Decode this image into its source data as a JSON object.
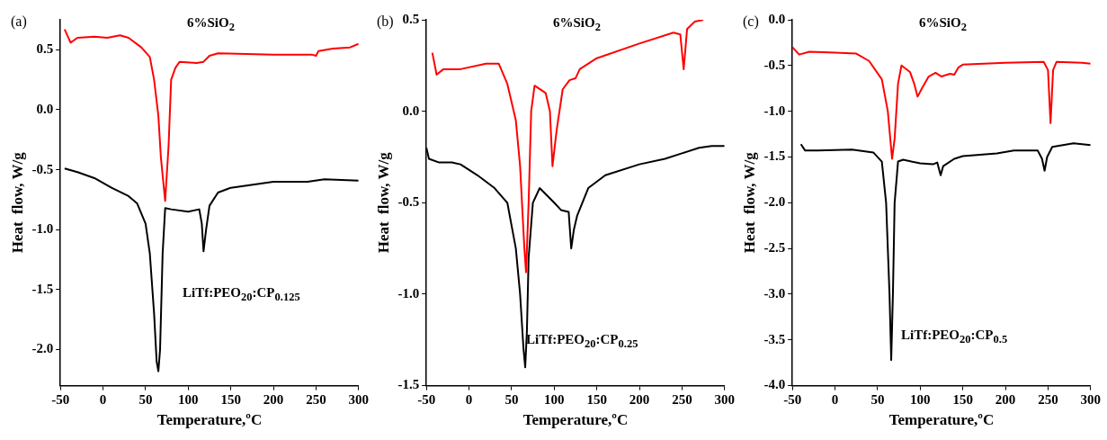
{
  "chart_data": [
    {
      "type": "line",
      "xlabel": "Temperature,ºC",
      "ylabel": "Heat  flow, W/g",
      "xlim": [
        -50,
        300
      ],
      "xticks": [
        -50,
        0,
        50,
        100,
        150,
        200,
        250,
        300
      ],
      "ylim": [
        -2.3,
        0.75
      ],
      "yticks": [
        {
          "value": -2.0,
          "label": "-2.0"
        },
        {
          "value": -1.5,
          "label": "-1.5"
        },
        {
          "value": -1.0,
          "label": "-1.0"
        },
        {
          "value": -0.5,
          "label": "-0.5"
        },
        {
          "value": 0,
          "label": "0.0"
        },
        {
          "value": 0.5,
          "label": "0.5"
        }
      ],
      "grid": false,
      "legend": false,
      "marker": "none",
      "line_style": "solid",
      "annotations": [
        "(a)",
        "6%SiO$_{2}$",
        "LiTf:PEO$_{20}$:CP$_{0.125}$"
      ],
      "series": [
        {
          "color": "#ff0000",
          "x": [
            -45,
            -38,
            -30,
            -10,
            5,
            20,
            30,
            45,
            55,
            60,
            65,
            68,
            73,
            77,
            80,
            85,
            90,
            110,
            118,
            125,
            135,
            200,
            245,
            250,
            253,
            270,
            290,
            300
          ],
          "values": [
            0.67,
            0.56,
            0.6,
            0.61,
            0.6,
            0.62,
            0.6,
            0.52,
            0.44,
            0.25,
            -0.05,
            -0.4,
            -0.76,
            -0.3,
            0.25,
            0.35,
            0.4,
            0.39,
            0.4,
            0.45,
            0.47,
            0.46,
            0.46,
            0.45,
            0.49,
            0.51,
            0.52,
            0.55
          ]
        },
        {
          "color": "#000000",
          "x": [
            -45,
            -30,
            -10,
            10,
            30,
            40,
            50,
            55,
            60,
            63,
            65,
            67,
            70,
            73,
            80,
            100,
            113,
            116,
            118,
            121,
            125,
            135,
            150,
            200,
            240,
            260,
            300
          ],
          "values": [
            -0.49,
            -0.52,
            -0.57,
            -0.65,
            -0.72,
            -0.78,
            -0.95,
            -1.2,
            -1.7,
            -2.1,
            -2.18,
            -2.0,
            -1.2,
            -0.82,
            -0.83,
            -0.85,
            -0.83,
            -0.95,
            -1.18,
            -1.0,
            -0.8,
            -0.69,
            -0.65,
            -0.6,
            -0.6,
            -0.58,
            -0.59
          ]
        }
      ]
    },
    {
      "type": "line",
      "xlabel": "Temperature,ºC",
      "ylabel": "Heat  flow, W/g",
      "xlim": [
        -50,
        300
      ],
      "xticks": [
        -50,
        0,
        50,
        100,
        150,
        200,
        250,
        300
      ],
      "ylim": [
        -1.5,
        0.5
      ],
      "yticks": [
        {
          "value": -1.5,
          "label": "-1.5"
        },
        {
          "value": -1.0,
          "label": "-1.0"
        },
        {
          "value": -0.5,
          "label": "-0.5"
        },
        {
          "value": 0,
          "label": "0.0"
        },
        {
          "value": 0.5,
          "label": "0.5"
        }
      ],
      "grid": false,
      "legend": false,
      "marker": "none",
      "line_style": "solid",
      "annotations": [
        "(b)",
        "6%SiO$_{2}$",
        "LiTf:PEO$_{20}$:CP$_{0.25}$"
      ],
      "series": [
        {
          "color": "#ff0000",
          "x": [
            -43,
            -38,
            -30,
            -10,
            20,
            35,
            45,
            55,
            60,
            65,
            67,
            70,
            73,
            77,
            90,
            95,
            98,
            103,
            110,
            118,
            125,
            130,
            150,
            200,
            240,
            248,
            252,
            256,
            265,
            275
          ],
          "values": [
            0.32,
            0.2,
            0.23,
            0.23,
            0.26,
            0.26,
            0.15,
            -0.05,
            -0.3,
            -0.75,
            -0.88,
            -0.5,
            0.0,
            0.14,
            0.1,
            0.0,
            -0.3,
            -0.1,
            0.12,
            0.17,
            0.18,
            0.23,
            0.29,
            0.37,
            0.43,
            0.42,
            0.23,
            0.45,
            0.49,
            0.5
          ]
        },
        {
          "color": "#000000",
          "x": [
            -50,
            -47,
            -35,
            -20,
            -10,
            10,
            30,
            45,
            55,
            60,
            64,
            66,
            68,
            70,
            75,
            83,
            100,
            108,
            117,
            120,
            123,
            127,
            140,
            160,
            200,
            230,
            250,
            270,
            285,
            300
          ],
          "values": [
            -0.2,
            -0.26,
            -0.28,
            -0.28,
            -0.29,
            -0.35,
            -0.42,
            -0.5,
            -0.75,
            -1.0,
            -1.3,
            -1.4,
            -1.2,
            -0.8,
            -0.5,
            -0.42,
            -0.5,
            -0.54,
            -0.55,
            -0.75,
            -0.65,
            -0.57,
            -0.42,
            -0.35,
            -0.29,
            -0.26,
            -0.23,
            -0.2,
            -0.19,
            -0.19
          ]
        }
      ]
    },
    {
      "type": "line",
      "xlabel": "Temperature,ºC",
      "ylabel": "Heat  flow, W/g",
      "xlim": [
        -50,
        300
      ],
      "xticks": [
        -50,
        0,
        50,
        100,
        150,
        200,
        250,
        300
      ],
      "ylim": [
        -4.0,
        0.0
      ],
      "yticks": [
        {
          "value": -4.0,
          "label": "-4.0"
        },
        {
          "value": -3.5,
          "label": "-3.5"
        },
        {
          "value": -3.0,
          "label": "-3.0"
        },
        {
          "value": -2.5,
          "label": "-2.5"
        },
        {
          "value": -2.0,
          "label": "-2.0"
        },
        {
          "value": -1.5,
          "label": "-1.5"
        },
        {
          "value": -1.0,
          "label": "-1.0"
        },
        {
          "value": -0.5,
          "label": "-0.5"
        },
        {
          "value": 0,
          "label": "0.0"
        }
      ],
      "grid": false,
      "legend": false,
      "marker": "none",
      "line_style": "solid",
      "annotations": [
        "(c)",
        "6%SiO$_{2}$",
        "LiTf:PEO$_{20}$:CP$_{0.5}$"
      ],
      "series": [
        {
          "color": "#ff0000",
          "x": [
            -50,
            -42,
            -30,
            0,
            25,
            40,
            55,
            62,
            67,
            70,
            74,
            78,
            88,
            93,
            97,
            102,
            110,
            118,
            125,
            135,
            140,
            145,
            150,
            200,
            245,
            250,
            253,
            256,
            260,
            290,
            300
          ],
          "values": [
            -0.3,
            -0.38,
            -0.35,
            -0.36,
            -0.37,
            -0.45,
            -0.65,
            -1.0,
            -1.52,
            -1.3,
            -0.7,
            -0.5,
            -0.57,
            -0.7,
            -0.84,
            -0.75,
            -0.62,
            -0.58,
            -0.62,
            -0.59,
            -0.6,
            -0.52,
            -0.49,
            -0.47,
            -0.46,
            -0.55,
            -1.13,
            -0.55,
            -0.46,
            -0.47,
            -0.48
          ]
        },
        {
          "color": "#000000",
          "x": [
            -40,
            -35,
            -20,
            20,
            45,
            55,
            60,
            64,
            66,
            68,
            70,
            74,
            80,
            100,
            115,
            120,
            124,
            127,
            140,
            150,
            190,
            210,
            238,
            243,
            246,
            249,
            255,
            280,
            300
          ],
          "values": [
            -1.36,
            -1.43,
            -1.43,
            -1.42,
            -1.45,
            -1.55,
            -2.0,
            -3.0,
            -3.72,
            -3.0,
            -2.0,
            -1.55,
            -1.53,
            -1.57,
            -1.58,
            -1.56,
            -1.7,
            -1.6,
            -1.52,
            -1.49,
            -1.46,
            -1.43,
            -1.43,
            -1.52,
            -1.65,
            -1.5,
            -1.39,
            -1.35,
            -1.37
          ]
        }
      ]
    }
  ]
}
